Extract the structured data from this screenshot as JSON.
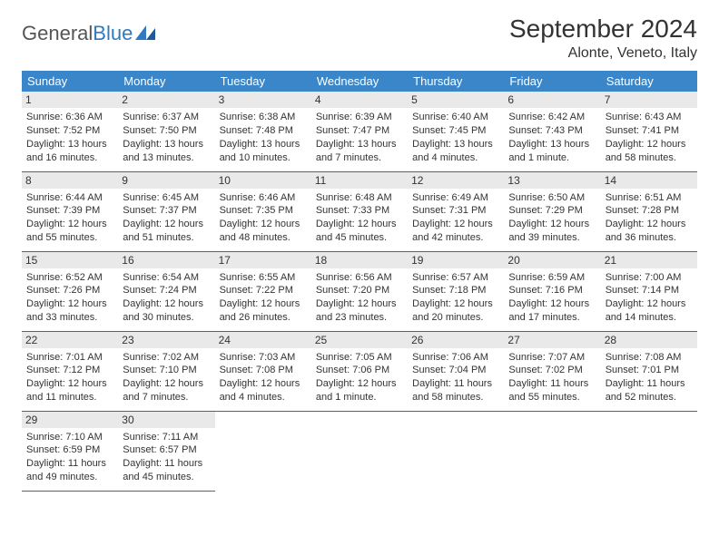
{
  "logo": {
    "text1": "General",
    "text2": "Blue"
  },
  "title": "September 2024",
  "location": "Alonte, Veneto, Italy",
  "colors": {
    "header_bg": "#3a86c8",
    "header_text": "#ffffff",
    "rule": "#2f6ca0",
    "daynum_bg": "#e9e9e9",
    "text": "#333333",
    "logo_blue": "#2f7ac0"
  },
  "weekdays": [
    "Sunday",
    "Monday",
    "Tuesday",
    "Wednesday",
    "Thursday",
    "Friday",
    "Saturday"
  ],
  "weeks": [
    [
      {
        "n": "1",
        "sr": "6:36 AM",
        "ss": "7:52 PM",
        "dl": "13 hours and 16 minutes."
      },
      {
        "n": "2",
        "sr": "6:37 AM",
        "ss": "7:50 PM",
        "dl": "13 hours and 13 minutes."
      },
      {
        "n": "3",
        "sr": "6:38 AM",
        "ss": "7:48 PM",
        "dl": "13 hours and 10 minutes."
      },
      {
        "n": "4",
        "sr": "6:39 AM",
        "ss": "7:47 PM",
        "dl": "13 hours and 7 minutes."
      },
      {
        "n": "5",
        "sr": "6:40 AM",
        "ss": "7:45 PM",
        "dl": "13 hours and 4 minutes."
      },
      {
        "n": "6",
        "sr": "6:42 AM",
        "ss": "7:43 PM",
        "dl": "13 hours and 1 minute."
      },
      {
        "n": "7",
        "sr": "6:43 AM",
        "ss": "7:41 PM",
        "dl": "12 hours and 58 minutes."
      }
    ],
    [
      {
        "n": "8",
        "sr": "6:44 AM",
        "ss": "7:39 PM",
        "dl": "12 hours and 55 minutes."
      },
      {
        "n": "9",
        "sr": "6:45 AM",
        "ss": "7:37 PM",
        "dl": "12 hours and 51 minutes."
      },
      {
        "n": "10",
        "sr": "6:46 AM",
        "ss": "7:35 PM",
        "dl": "12 hours and 48 minutes."
      },
      {
        "n": "11",
        "sr": "6:48 AM",
        "ss": "7:33 PM",
        "dl": "12 hours and 45 minutes."
      },
      {
        "n": "12",
        "sr": "6:49 AM",
        "ss": "7:31 PM",
        "dl": "12 hours and 42 minutes."
      },
      {
        "n": "13",
        "sr": "6:50 AM",
        "ss": "7:29 PM",
        "dl": "12 hours and 39 minutes."
      },
      {
        "n": "14",
        "sr": "6:51 AM",
        "ss": "7:28 PM",
        "dl": "12 hours and 36 minutes."
      }
    ],
    [
      {
        "n": "15",
        "sr": "6:52 AM",
        "ss": "7:26 PM",
        "dl": "12 hours and 33 minutes."
      },
      {
        "n": "16",
        "sr": "6:54 AM",
        "ss": "7:24 PM",
        "dl": "12 hours and 30 minutes."
      },
      {
        "n": "17",
        "sr": "6:55 AM",
        "ss": "7:22 PM",
        "dl": "12 hours and 26 minutes."
      },
      {
        "n": "18",
        "sr": "6:56 AM",
        "ss": "7:20 PM",
        "dl": "12 hours and 23 minutes."
      },
      {
        "n": "19",
        "sr": "6:57 AM",
        "ss": "7:18 PM",
        "dl": "12 hours and 20 minutes."
      },
      {
        "n": "20",
        "sr": "6:59 AM",
        "ss": "7:16 PM",
        "dl": "12 hours and 17 minutes."
      },
      {
        "n": "21",
        "sr": "7:00 AM",
        "ss": "7:14 PM",
        "dl": "12 hours and 14 minutes."
      }
    ],
    [
      {
        "n": "22",
        "sr": "7:01 AM",
        "ss": "7:12 PM",
        "dl": "12 hours and 11 minutes."
      },
      {
        "n": "23",
        "sr": "7:02 AM",
        "ss": "7:10 PM",
        "dl": "12 hours and 7 minutes."
      },
      {
        "n": "24",
        "sr": "7:03 AM",
        "ss": "7:08 PM",
        "dl": "12 hours and 4 minutes."
      },
      {
        "n": "25",
        "sr": "7:05 AM",
        "ss": "7:06 PM",
        "dl": "12 hours and 1 minute."
      },
      {
        "n": "26",
        "sr": "7:06 AM",
        "ss": "7:04 PM",
        "dl": "11 hours and 58 minutes."
      },
      {
        "n": "27",
        "sr": "7:07 AM",
        "ss": "7:02 PM",
        "dl": "11 hours and 55 minutes."
      },
      {
        "n": "28",
        "sr": "7:08 AM",
        "ss": "7:01 PM",
        "dl": "11 hours and 52 minutes."
      }
    ],
    [
      {
        "n": "29",
        "sr": "7:10 AM",
        "ss": "6:59 PM",
        "dl": "11 hours and 49 minutes."
      },
      {
        "n": "30",
        "sr": "7:11 AM",
        "ss": "6:57 PM",
        "dl": "11 hours and 45 minutes."
      },
      null,
      null,
      null,
      null,
      null
    ]
  ],
  "labels": {
    "sunrise": "Sunrise: ",
    "sunset": "Sunset: ",
    "daylight": "Daylight: "
  }
}
